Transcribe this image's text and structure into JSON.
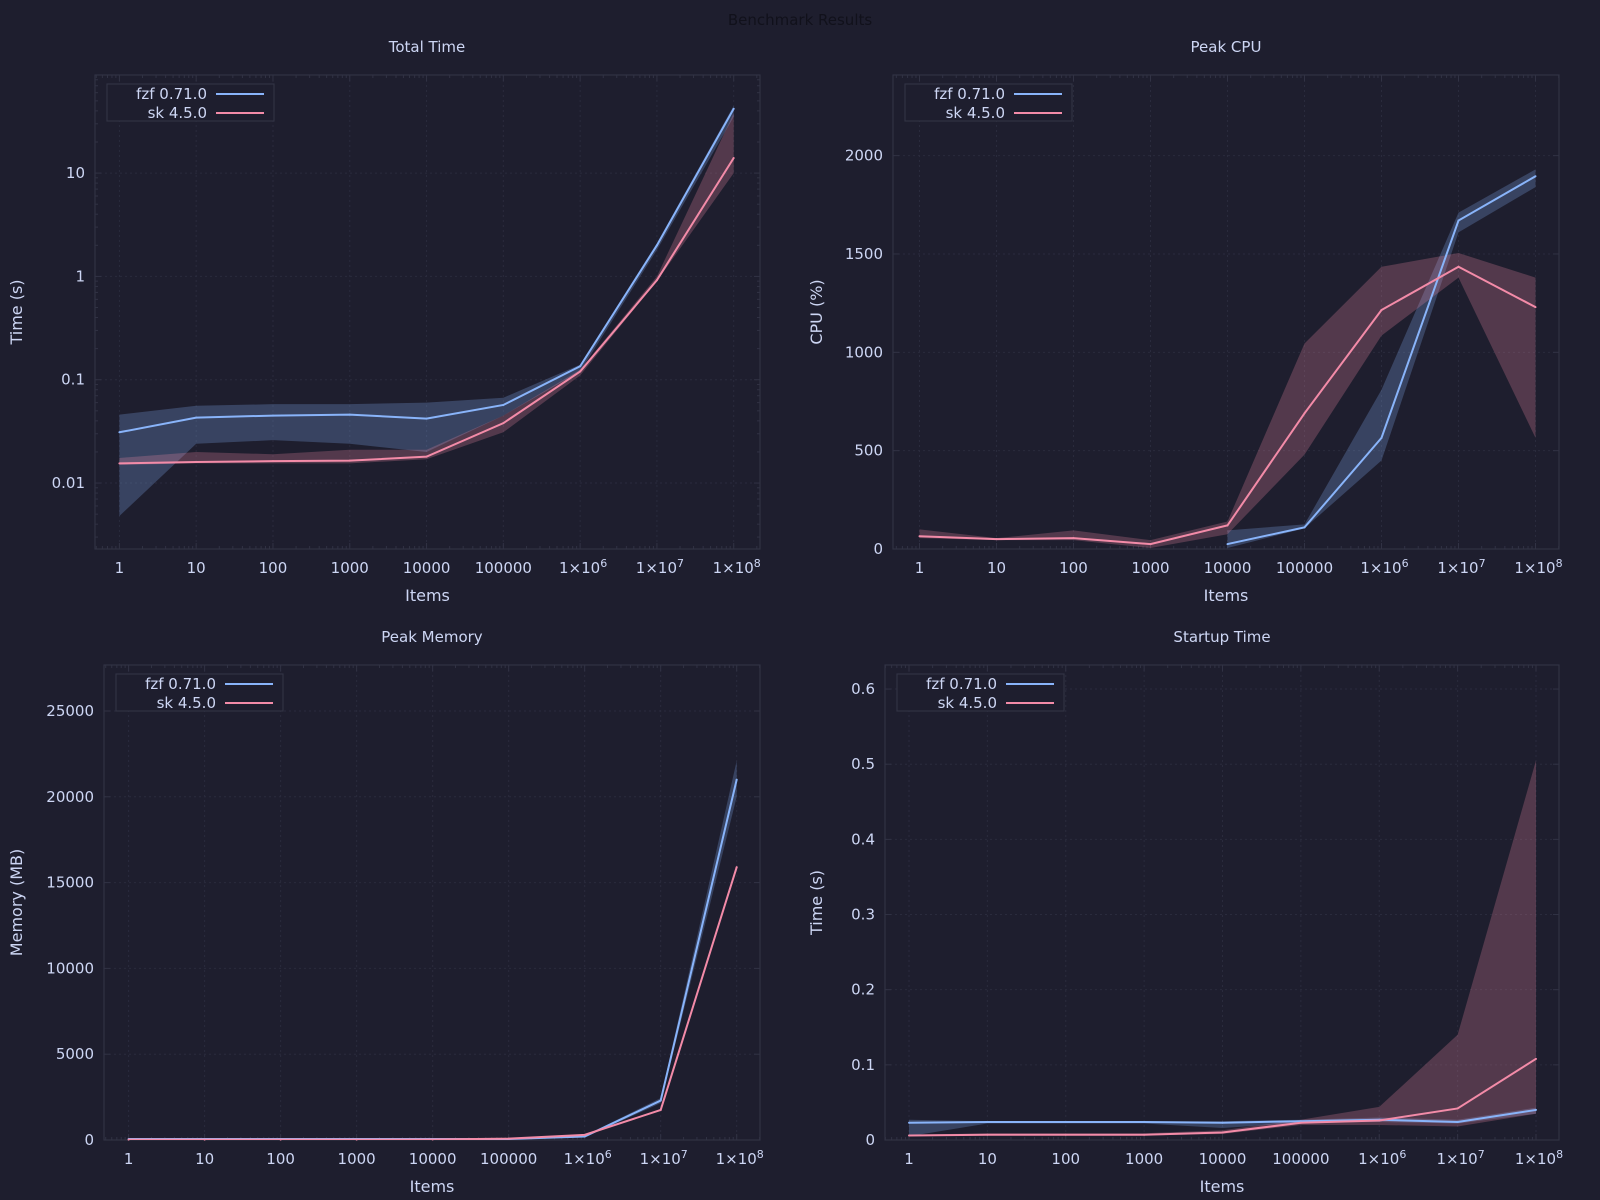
{
  "title": "Benchmark Results",
  "colors": {
    "background": "#1e1e2e",
    "text": "#cdd6f4",
    "fzf": "#89b4fa",
    "sk": "#f38ba8",
    "frame": "#313244"
  },
  "chart_data": [
    {
      "type": "line",
      "title": "Total Time",
      "xlabel": "Items",
      "ylabel": "Time (s)",
      "xscale": "log",
      "yscale": "log",
      "x": [
        1,
        10,
        100,
        1000,
        10000,
        100000,
        1000000,
        10000000,
        100000000
      ],
      "xtick_labels": [
        "1",
        "10",
        "100",
        "1000",
        "10000",
        "100000",
        "1×10^6",
        "1×10^7",
        "1×10^8"
      ],
      "ylim": [
        0.0023,
        89
      ],
      "yticks": [
        0.01,
        0.1,
        1,
        10
      ],
      "ytick_labels": [
        "0.01",
        "0.1",
        "1",
        "10"
      ],
      "grid": true,
      "legend": "top-left",
      "series": [
        {
          "name": "fzf 0.71.0",
          "color": "#89b4fa",
          "values": [
            0.031,
            0.043,
            0.045,
            0.046,
            0.042,
            0.057,
            0.135,
            2.0,
            42
          ],
          "lower": [
            0.0048,
            0.024,
            0.026,
            0.024,
            0.02,
            0.045,
            0.12,
            1.8,
            35
          ],
          "upper": [
            0.046,
            0.056,
            0.058,
            0.058,
            0.06,
            0.067,
            0.14,
            2.1,
            45
          ]
        },
        {
          "name": "sk 4.5.0",
          "color": "#f38ba8",
          "values": [
            0.0155,
            0.016,
            0.0163,
            0.0165,
            0.018,
            0.038,
            0.12,
            0.92,
            14
          ],
          "lower": [
            0.015,
            0.0155,
            0.0155,
            0.0155,
            0.017,
            0.031,
            0.11,
            0.9,
            10
          ],
          "upper": [
            0.0175,
            0.02,
            0.019,
            0.021,
            0.021,
            0.045,
            0.125,
            1.0,
            38
          ]
        }
      ]
    },
    {
      "type": "line",
      "title": "Peak CPU",
      "xlabel": "Items",
      "ylabel": "CPU (%)",
      "xscale": "log",
      "yscale": "linear",
      "x": [
        1,
        10,
        100,
        1000,
        10000,
        100000,
        1000000,
        10000000,
        100000000
      ],
      "xtick_labels": [
        "1",
        "10",
        "100",
        "1000",
        "10000",
        "100000",
        "1×10^6",
        "1×10^7",
        "1×10^8"
      ],
      "ylim": [
        0,
        2410
      ],
      "yticks": [
        0,
        500,
        1000,
        1500,
        2000
      ],
      "ytick_labels": [
        "0",
        "500",
        "1000",
        "1500",
        "2000"
      ],
      "grid": true,
      "legend": "top-left",
      "series": [
        {
          "name": "fzf 0.71.0",
          "color": "#89b4fa",
          "values": [
            null,
            null,
            null,
            null,
            25,
            110,
            565,
            1670,
            1895
          ],
          "lower": [
            null,
            null,
            null,
            null,
            5,
            105,
            450,
            1610,
            1840
          ],
          "upper": [
            null,
            null,
            null,
            null,
            95,
            125,
            810,
            1710,
            1930
          ]
        },
        {
          "name": "sk 4.5.0",
          "color": "#f38ba8",
          "values": [
            65,
            50,
            55,
            25,
            120,
            690,
            1215,
            1435,
            1230
          ],
          "lower": [
            55,
            45,
            45,
            5,
            75,
            480,
            1085,
            1380,
            565
          ],
          "upper": [
            100,
            55,
            95,
            45,
            140,
            1045,
            1435,
            1505,
            1380
          ]
        }
      ]
    },
    {
      "type": "line",
      "title": "Peak Memory",
      "xlabel": "Items",
      "ylabel": "Memory (MB)",
      "xscale": "log",
      "yscale": "linear",
      "x": [
        1,
        10,
        100,
        1000,
        10000,
        100000,
        1000000,
        10000000,
        100000000
      ],
      "xtick_labels": [
        "1",
        "10",
        "100",
        "1000",
        "10000",
        "100000",
        "1×10^6",
        "1×10^7",
        "1×10^8"
      ],
      "ylim": [
        0,
        27680
      ],
      "yticks": [
        0,
        5000,
        10000,
        15000,
        20000,
        25000
      ],
      "ytick_labels": [
        "0",
        "5000",
        "10000",
        "15000",
        "20000",
        "25000"
      ],
      "grid": true,
      "legend": "top-left",
      "series": [
        {
          "name": "fzf 0.71.0",
          "color": "#89b4fa",
          "values": [
            60,
            60,
            60,
            60,
            60,
            60,
            200,
            2300,
            21000
          ],
          "lower": [
            20,
            20,
            20,
            20,
            20,
            20,
            150,
            2150,
            20000
          ],
          "upper": [
            80,
            80,
            80,
            80,
            80,
            80,
            250,
            2450,
            22100
          ]
        },
        {
          "name": "sk 4.5.0",
          "color": "#f38ba8",
          "values": [
            20,
            20,
            20,
            20,
            30,
            80,
            300,
            1750,
            15900
          ],
          "lower": [
            15,
            15,
            15,
            15,
            25,
            70,
            270,
            1700,
            15800
          ],
          "upper": [
            25,
            25,
            25,
            25,
            35,
            90,
            330,
            1800,
            16000
          ]
        }
      ]
    },
    {
      "type": "line",
      "title": "Startup Time",
      "xlabel": "Items",
      "ylabel": "Time (s)",
      "xscale": "log",
      "yscale": "linear",
      "x": [
        1,
        10,
        100,
        1000,
        10000,
        100000,
        1000000,
        10000000,
        100000000
      ],
      "xtick_labels": [
        "1",
        "10",
        "100",
        "1000",
        "10000",
        "100000",
        "1×10^6",
        "1×10^7",
        "1×10^8"
      ],
      "ylim": [
        0,
        0.632
      ],
      "yticks": [
        0,
        0.1,
        0.2,
        0.3,
        0.4,
        0.5,
        0.6
      ],
      "ytick_labels": [
        "0",
        "0.1",
        "0.2",
        "0.3",
        "0.4",
        "0.5",
        "0.6"
      ],
      "grid": true,
      "legend": "top-left",
      "series": [
        {
          "name": "fzf 0.71.0",
          "color": "#89b4fa",
          "values": [
            0.023,
            0.024,
            0.024,
            0.024,
            0.023,
            0.025,
            0.027,
            0.024,
            0.04
          ],
          "lower": [
            0.005,
            0.022,
            0.022,
            0.022,
            0.016,
            0.023,
            0.024,
            0.022,
            0.035
          ],
          "upper": [
            0.027,
            0.025,
            0.025,
            0.025,
            0.025,
            0.027,
            0.03,
            0.027,
            0.043
          ]
        },
        {
          "name": "sk 4.5.0",
          "color": "#f38ba8",
          "values": [
            0.006,
            0.007,
            0.007,
            0.007,
            0.01,
            0.023,
            0.026,
            0.042,
            0.108
          ],
          "lower": [
            0.005,
            0.006,
            0.006,
            0.006,
            0.008,
            0.02,
            0.02,
            0.018,
            0.035
          ],
          "upper": [
            0.007,
            0.009,
            0.009,
            0.009,
            0.013,
            0.027,
            0.044,
            0.14,
            0.505
          ]
        }
      ]
    }
  ]
}
